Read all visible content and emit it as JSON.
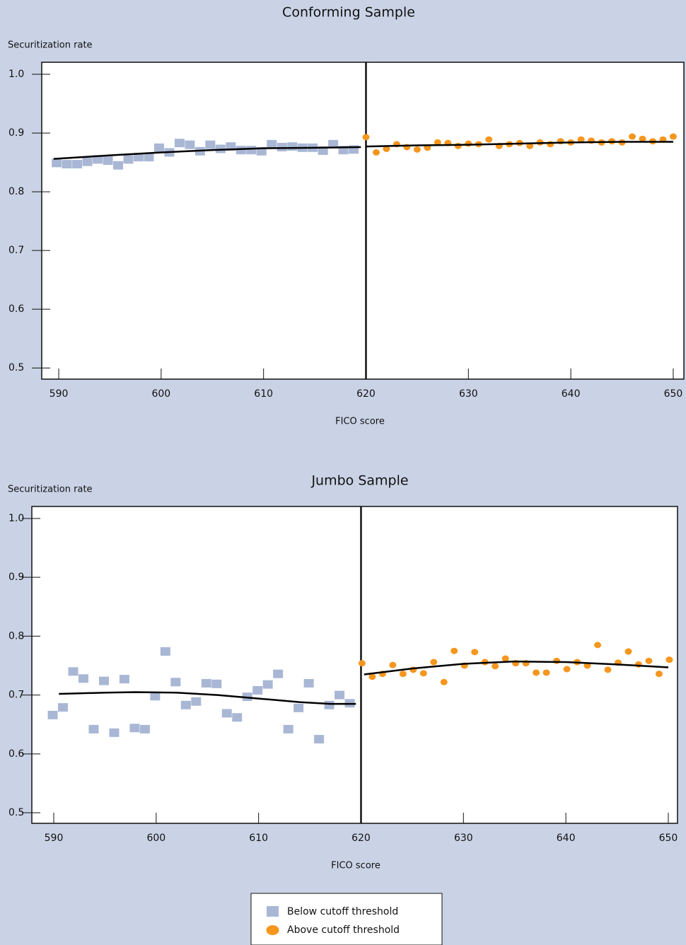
{
  "chart_data": [
    {
      "type": "scatter",
      "title": "Conforming Sample",
      "y_label": "Securitization rate",
      "x_label": "FICO score",
      "xlim": [
        588.34,
        651.04
      ],
      "xticks": [
        590,
        600,
        610,
        620,
        630,
        640,
        650
      ],
      "ylim": [
        0.481,
        1.0205
      ],
      "yticks": [
        {
          "value": 1,
          "label": "1.0"
        },
        0.9,
        0.8,
        0.7,
        0.6,
        0.5
      ],
      "cutoff": 620,
      "series": [
        {
          "name": "Below cutoff threshold",
          "color": "#a9b7d5",
          "marker": "square",
          "x": [
            589.8,
            590.8,
            591.8,
            592.8,
            593.8,
            594.8,
            595.8,
            596.8,
            597.8,
            598.8,
            599.8,
            600.8,
            601.8,
            602.8,
            603.8,
            604.8,
            605.8,
            606.8,
            607.8,
            608.8,
            609.8,
            610.8,
            611.8,
            612.8,
            613.8,
            614.8,
            615.8,
            616.8,
            617.8,
            618.8
          ],
          "values": [
            0.849,
            0.847,
            0.847,
            0.851,
            0.855,
            0.853,
            0.845,
            0.855,
            0.859,
            0.859,
            0.875,
            0.867,
            0.883,
            0.88,
            0.869,
            0.88,
            0.873,
            0.877,
            0.871,
            0.871,
            0.869,
            0.881,
            0.876,
            0.877,
            0.875,
            0.875,
            0.87,
            0.881,
            0.871,
            0.872
          ]
        },
        {
          "name": "Above cutoff threshold",
          "color": "#f5961e",
          "marker": "circle",
          "x": [
            620,
            621,
            622,
            623,
            624,
            625,
            626,
            627,
            628,
            629,
            630,
            631,
            632,
            633,
            634,
            635,
            636,
            637,
            638,
            639,
            640,
            641,
            642,
            643,
            644,
            645,
            646,
            647,
            648,
            649,
            650
          ],
          "values": [
            0.893,
            0.867,
            0.873,
            0.881,
            0.876,
            0.872,
            0.875,
            0.884,
            0.883,
            0.878,
            0.882,
            0.881,
            0.889,
            0.878,
            0.881,
            0.883,
            0.878,
            0.884,
            0.881,
            0.886,
            0.884,
            0.889,
            0.887,
            0.884,
            0.886,
            0.884,
            0.894,
            0.89,
            0.886,
            0.889,
            0.894
          ]
        }
      ],
      "fit_lines": [
        {
          "color": "#000000",
          "x": [
            589.5,
            595,
            600,
            605,
            610,
            615,
            619.5
          ],
          "values": [
            0.856,
            0.862,
            0.867,
            0.871,
            0.874,
            0.875,
            0.876
          ]
        },
        {
          "color": "#000000",
          "x": [
            620,
            625,
            630,
            635,
            640,
            645,
            650
          ],
          "values": [
            0.877,
            0.879,
            0.88,
            0.882,
            0.884,
            0.885,
            0.885
          ]
        }
      ]
    },
    {
      "type": "scatter",
      "title": "Jumbo Sample",
      "y_label": "Securitization rate",
      "x_label": "FICO score",
      "xlim": [
        587.86,
        650.9
      ],
      "xticks": [
        590,
        600,
        610,
        620,
        630,
        640,
        650
      ],
      "ylim": [
        0.482,
        1.0204
      ],
      "yticks": [
        {
          "value": 1,
          "label": "1.0"
        },
        0.9,
        0.8,
        0.7,
        0.6,
        0.5
      ],
      "cutoff": 620,
      "series": [
        {
          "name": "Below cutoff threshold",
          "color": "#a9b7d5",
          "marker": "square",
          "x": [
            589.9,
            590.9,
            591.9,
            592.9,
            593.9,
            594.9,
            595.9,
            596.9,
            597.9,
            598.9,
            599.9,
            600.9,
            601.9,
            602.9,
            603.9,
            604.9,
            605.9,
            606.9,
            607.9,
            608.9,
            609.9,
            610.9,
            611.9,
            612.9,
            613.9,
            614.9,
            615.9,
            616.9,
            617.9,
            618.9
          ],
          "values": [
            0.666,
            0.679,
            0.74,
            0.728,
            0.642,
            0.724,
            0.636,
            0.727,
            0.644,
            0.642,
            0.698,
            0.774,
            0.722,
            0.683,
            0.689,
            0.72,
            0.719,
            0.669,
            0.662,
            0.697,
            0.708,
            0.718,
            0.736,
            0.642,
            0.678,
            0.72,
            0.625,
            0.683,
            0.7,
            0.686
          ]
        },
        {
          "name": "Above cutoff threshold",
          "color": "#f5961e",
          "marker": "circle",
          "x": [
            620.1,
            621.1,
            622.1,
            623.1,
            624.1,
            625.1,
            626.1,
            627.1,
            628.1,
            629.1,
            630.1,
            631.1,
            632.1,
            633.1,
            634.1,
            635.1,
            636.1,
            637.1,
            638.1,
            639.1,
            640.1,
            641.1,
            642.1,
            643.1,
            644.1,
            645.1,
            646.1,
            647.1,
            648.1,
            649.1,
            650.1
          ],
          "values": [
            0.754,
            0.731,
            0.736,
            0.751,
            0.736,
            0.743,
            0.737,
            0.756,
            0.722,
            0.775,
            0.75,
            0.773,
            0.756,
            0.749,
            0.762,
            0.754,
            0.754,
            0.738,
            0.738,
            0.758,
            0.744,
            0.756,
            0.75,
            0.785,
            0.743,
            0.755,
            0.774,
            0.752,
            0.758,
            0.736,
            0.76
          ]
        }
      ],
      "fit_lines": [
        {
          "color": "#000000",
          "x": [
            590.5,
            595,
            598,
            602,
            606,
            610,
            614,
            617,
            619.5
          ],
          "values": [
            0.702,
            0.704,
            0.705,
            0.704,
            0.7,
            0.694,
            0.688,
            0.685,
            0.685
          ]
        },
        {
          "color": "#000000",
          "x": [
            620.3,
            625,
            630,
            635,
            640,
            645,
            650
          ],
          "values": [
            0.735,
            0.745,
            0.753,
            0.757,
            0.756,
            0.752,
            0.747
          ]
        }
      ]
    }
  ]
}
